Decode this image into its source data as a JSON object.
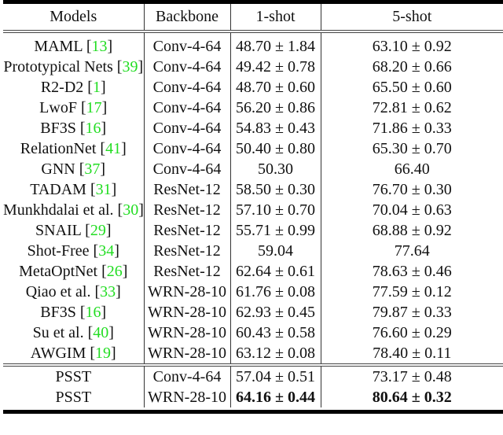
{
  "table": {
    "headers": [
      "Models",
      "Backbone",
      "1-shot",
      "5-shot"
    ],
    "rows": [
      {
        "model": "MAML",
        "ref": "13",
        "backbone": "Conv-4-64",
        "one_shot": "48.70 ± 1.84",
        "five_shot": "63.10 ± 0.92"
      },
      {
        "model": "Prototypical Nets",
        "ref": "39",
        "backbone": "Conv-4-64",
        "one_shot": "49.42 ± 0.78",
        "five_shot": "68.20 ± 0.66"
      },
      {
        "model": "R2-D2",
        "ref": "1",
        "backbone": "Conv-4-64",
        "one_shot": "48.70 ± 0.60",
        "five_shot": "65.50 ± 0.60"
      },
      {
        "model": "LwoF",
        "ref": "17",
        "backbone": "Conv-4-64",
        "one_shot": "56.20 ± 0.86",
        "five_shot": "72.81 ± 0.62"
      },
      {
        "model": "BF3S",
        "ref": "16",
        "backbone": "Conv-4-64",
        "one_shot": "54.83 ± 0.43",
        "five_shot": "71.86 ± 0.33"
      },
      {
        "model": "RelationNet",
        "ref": "41",
        "backbone": "Conv-4-64",
        "one_shot": "50.40 ± 0.80",
        "five_shot": "65.30 ± 0.70"
      },
      {
        "model": "GNN",
        "ref": "37",
        "backbone": "Conv-4-64",
        "one_shot": "50.30",
        "five_shot": "66.40"
      },
      {
        "model": "TADAM",
        "ref": "31",
        "backbone": "ResNet-12",
        "one_shot": "58.50 ± 0.30",
        "five_shot": "76.70 ± 0.30"
      },
      {
        "model": "Munkhdalai et al.",
        "ref": "30",
        "backbone": "ResNet-12",
        "one_shot": "57.10 ± 0.70",
        "five_shot": "70.04 ± 0.63"
      },
      {
        "model": "SNAIL",
        "ref": "29",
        "backbone": "ResNet-12",
        "one_shot": "55.71 ± 0.99",
        "five_shot": "68.88 ± 0.92"
      },
      {
        "model": "Shot-Free",
        "ref": "34",
        "backbone": "ResNet-12",
        "one_shot": "59.04",
        "five_shot": "77.64"
      },
      {
        "model": "MetaOptNet",
        "ref": "26",
        "backbone": "ResNet-12",
        "one_shot": "62.64 ± 0.61",
        "five_shot": "78.63 ± 0.46"
      },
      {
        "model": "Qiao et al.",
        "ref": "33",
        "backbone": "WRN-28-10",
        "one_shot": "61.76 ± 0.08",
        "five_shot": "77.59 ± 0.12"
      },
      {
        "model": "BF3S",
        "ref": "16",
        "backbone": "WRN-28-10",
        "one_shot": "62.93 ± 0.45",
        "five_shot": "79.87 ± 0.33"
      },
      {
        "model": "Su et al.",
        "ref": "40",
        "backbone": "WRN-28-10",
        "one_shot": "60.43 ± 0.58",
        "five_shot": "76.60 ± 0.29"
      },
      {
        "model": "AWGIM",
        "ref": "19",
        "backbone": "WRN-28-10",
        "one_shot": "63.12 ± 0.08",
        "five_shot": "78.40 ± 0.11"
      }
    ],
    "ours": [
      {
        "model": "PSST",
        "backbone": "Conv-4-64",
        "one_shot": "57.04 ± 0.51",
        "five_shot": "73.17 ± 0.48",
        "bold": false
      },
      {
        "model": "PSST",
        "backbone": "WRN-28-10",
        "one_shot": "64.16 ± 0.44",
        "five_shot": "80.64 ± 0.32",
        "bold": true
      }
    ]
  },
  "colors": {
    "citation": "#22dd22",
    "rule": "#000000"
  }
}
